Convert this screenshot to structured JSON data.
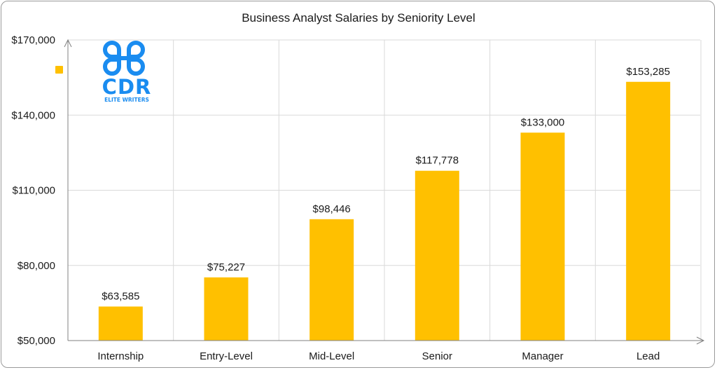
{
  "chart_data": {
    "type": "bar",
    "title": "Business Analyst Salaries by Seniority Level",
    "xlabel": "",
    "ylabel": "",
    "categories": [
      "Internship",
      "Entry-Level",
      "Mid-Level",
      "Senior",
      "Manager",
      "Lead"
    ],
    "values": [
      63585,
      75227,
      98446,
      117778,
      133000,
      153285
    ],
    "data_labels": [
      "$63,585",
      "$75,227",
      "$98,446",
      "$117,778",
      "$133,000",
      "$153,285"
    ],
    "ylim": [
      50000,
      170000
    ],
    "yticks": [
      50000,
      80000,
      110000,
      140000,
      170000
    ],
    "ytick_labels": [
      "$50,000",
      "$80,000",
      "$110,000",
      "$140,000",
      "$170,000"
    ],
    "grid": true,
    "legend": "top-left",
    "bar_color": "#FFC000"
  },
  "logo": {
    "main": "CDR",
    "sub": "ELITE WRITERS",
    "color": "#1a8cf0"
  }
}
